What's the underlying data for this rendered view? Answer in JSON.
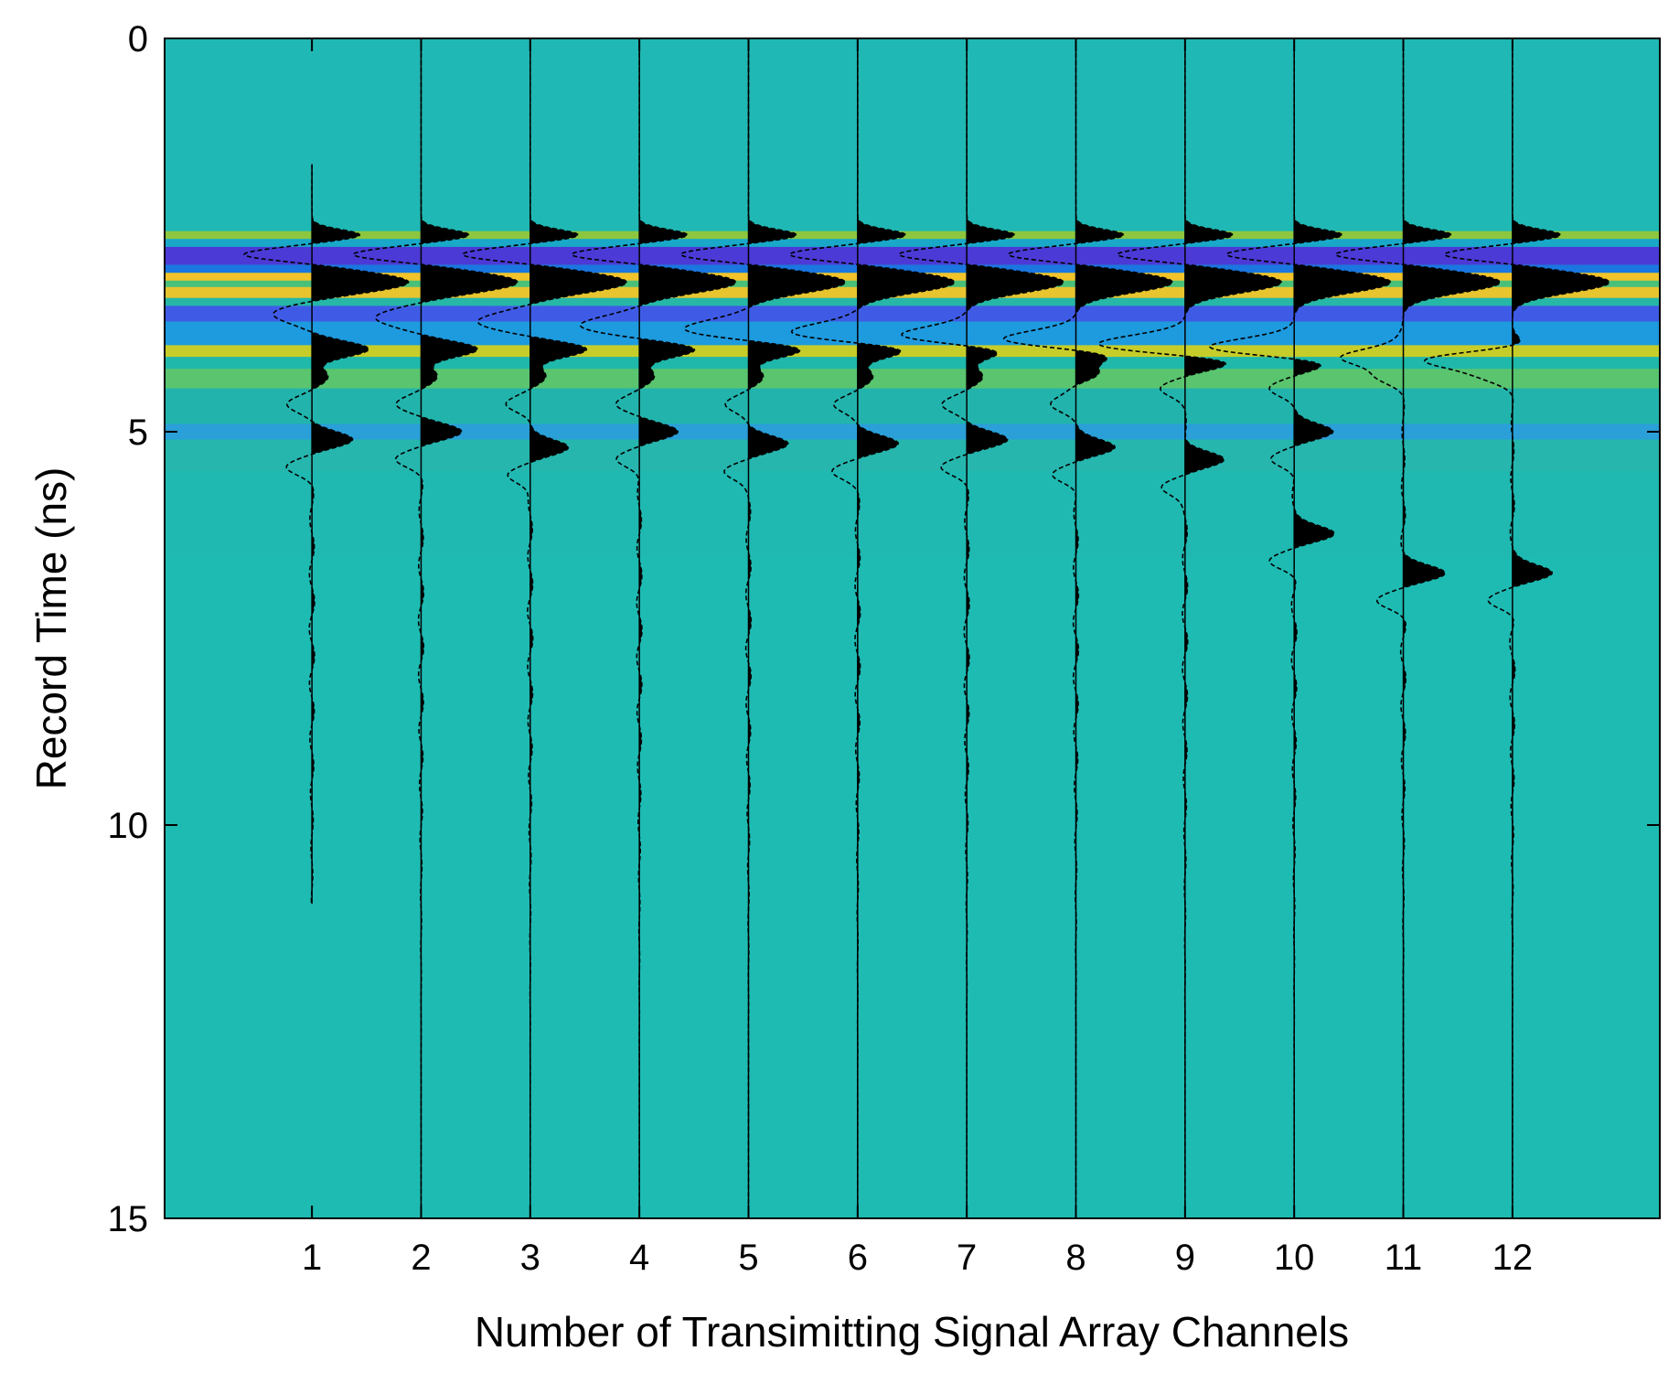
{
  "chart_data": {
    "type": "heatmap",
    "overlay": "wiggle-traces",
    "title": "",
    "xlabel": "Number of Transimitting Signal Array Channels",
    "ylabel": "Record Time (ns)",
    "xlim": [
      -0.35,
      13.35
    ],
    "ylim": [
      15,
      0
    ],
    "y_reversed": true,
    "xticks": [
      1,
      2,
      3,
      4,
      5,
      6,
      7,
      8,
      9,
      10,
      11,
      12
    ],
    "xtick_labels": [
      "1",
      "2",
      "3",
      "4",
      "5",
      "6",
      "7",
      "8",
      "9",
      "10",
      "11",
      "12"
    ],
    "yticks": [
      0,
      5,
      10,
      15
    ],
    "ytick_labels": [
      "0",
      "5",
      "10",
      "15"
    ],
    "colormap": "parula",
    "colors": {
      "background": "#1ebbb3",
      "trace_fill": "#000000",
      "trace_line": "#000000"
    },
    "traces": [
      {
        "channel": 1,
        "x": 1,
        "end_time": 11.0
      },
      {
        "channel": 2,
        "x": 2,
        "end_time": 15.0
      },
      {
        "channel": 3,
        "x": 3,
        "end_time": 15.0
      },
      {
        "channel": 4,
        "x": 4,
        "end_time": 15.0
      },
      {
        "channel": 5,
        "x": 5,
        "end_time": 15.0
      },
      {
        "channel": 6,
        "x": 6,
        "end_time": 15.0
      },
      {
        "channel": 7,
        "x": 7,
        "end_time": 15.0
      },
      {
        "channel": 8,
        "x": 8,
        "end_time": 15.0
      },
      {
        "channel": 9,
        "x": 9,
        "end_time": 15.0
      },
      {
        "channel": 10,
        "x": 10,
        "end_time": 15.0
      },
      {
        "channel": 11,
        "x": 11,
        "end_time": 15.0
      },
      {
        "channel": 12,
        "x": 12,
        "end_time": 15.0
      }
    ],
    "direct_wave": {
      "peak1_time": 2.5,
      "trough_time": 2.75,
      "peak2_time": 3.1,
      "trough2_time": 3.5
    },
    "reflections": [
      {
        "channel": 1,
        "peaks": [
          3.95,
          4.3,
          5.1
        ]
      },
      {
        "channel": 2,
        "peaks": [
          3.95,
          4.3,
          5.0
        ]
      },
      {
        "channel": 3,
        "peaks": [
          3.95,
          4.3,
          5.2
        ]
      },
      {
        "channel": 4,
        "peaks": [
          3.95,
          4.3,
          5.0
        ]
      },
      {
        "channel": 5,
        "peaks": [
          3.95,
          4.3,
          5.15
        ]
      },
      {
        "channel": 6,
        "peaks": [
          3.95,
          4.3,
          5.15
        ]
      },
      {
        "channel": 7,
        "peaks": [
          3.95,
          4.3,
          5.1
        ]
      },
      {
        "channel": 8,
        "peaks": [
          4.0,
          4.3,
          5.2
        ]
      },
      {
        "channel": 9,
        "peaks": [
          4.1,
          5.35
        ]
      },
      {
        "channel": 10,
        "peaks": [
          4.1,
          5.0,
          6.3
        ]
      },
      {
        "channel": 11,
        "peaks": [
          3.95,
          6.8
        ]
      },
      {
        "channel": 12,
        "peaks": [
          3.95,
          6.8
        ]
      }
    ],
    "color_bands": [
      {
        "from": 0.0,
        "to": 2.45,
        "color": "#20b8b4"
      },
      {
        "from": 2.45,
        "to": 2.55,
        "color": "#8dc63f"
      },
      {
        "from": 2.55,
        "to": 2.65,
        "color": "#19a8c8"
      },
      {
        "from": 2.65,
        "to": 2.88,
        "color": "#4b3ad6"
      },
      {
        "from": 2.88,
        "to": 2.98,
        "color": "#1a76e0"
      },
      {
        "from": 2.98,
        "to": 3.08,
        "color": "#f2c32a"
      },
      {
        "from": 3.08,
        "to": 3.16,
        "color": "#48c07a"
      },
      {
        "from": 3.16,
        "to": 3.3,
        "color": "#e8c42f"
      },
      {
        "from": 3.3,
        "to": 3.4,
        "color": "#27b7a6"
      },
      {
        "from": 3.4,
        "to": 3.6,
        "color": "#3f5be6"
      },
      {
        "from": 3.6,
        "to": 3.9,
        "color": "#1e9ade"
      },
      {
        "from": 3.9,
        "to": 4.05,
        "color": "#c6cd2a"
      },
      {
        "from": 4.05,
        "to": 4.2,
        "color": "#1fb8aa"
      },
      {
        "from": 4.2,
        "to": 4.45,
        "color": "#5ac46e"
      },
      {
        "from": 4.45,
        "to": 4.9,
        "color": "#22b4ac"
      },
      {
        "from": 4.9,
        "to": 5.1,
        "color": "#2a9fd8"
      },
      {
        "from": 5.1,
        "to": 5.5,
        "color": "#26b6ae"
      },
      {
        "from": 5.5,
        "to": 6.6,
        "color": "#1fb9b1"
      },
      {
        "from": 6.6,
        "to": 15.0,
        "color": "#1ebbb3"
      }
    ]
  }
}
